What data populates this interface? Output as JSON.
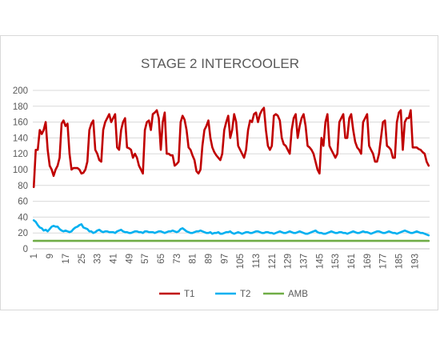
{
  "chart_data": {
    "type": "line",
    "title": "STAGE 2 INTERCOOLER",
    "xlabel": "",
    "ylabel": "",
    "ylim": [
      0,
      200
    ],
    "yticks": [
      0,
      20,
      40,
      60,
      80,
      100,
      120,
      140,
      160,
      180,
      200
    ],
    "grid": true,
    "legend_position": "bottom",
    "x": [
      1,
      2,
      3,
      4,
      5,
      6,
      7,
      8,
      9,
      10,
      11,
      12,
      13,
      14,
      15,
      16,
      17,
      18,
      19,
      20,
      21,
      22,
      23,
      24,
      25,
      26,
      27,
      28,
      29,
      30,
      31,
      32,
      33,
      34,
      35,
      36,
      37,
      38,
      39,
      40,
      41,
      42,
      43,
      44,
      45,
      46,
      47,
      48,
      49,
      50,
      51,
      52,
      53,
      54,
      55,
      56,
      57,
      58,
      59,
      60,
      61,
      62,
      63,
      64,
      65,
      66,
      67,
      68,
      69,
      70,
      71,
      72,
      73,
      74,
      75,
      76,
      77,
      78,
      79,
      80,
      81,
      82,
      83,
      84,
      85,
      86,
      87,
      88,
      89,
      90,
      91,
      92,
      93,
      94,
      95,
      96,
      97,
      98,
      99,
      100,
      101,
      102,
      103,
      104,
      105,
      106,
      107,
      108,
      109,
      110,
      111,
      112,
      113,
      114,
      115,
      116,
      117,
      118,
      119,
      120,
      121,
      122,
      123,
      124,
      125,
      126,
      127,
      128,
      129,
      130,
      131,
      132,
      133,
      134,
      135,
      136,
      137,
      138,
      139,
      140,
      141,
      142,
      143,
      144,
      145,
      146,
      147,
      148,
      149,
      150,
      151,
      152,
      153,
      154,
      155,
      156,
      157,
      158,
      159,
      160,
      161,
      162,
      163,
      164,
      165,
      166,
      167,
      168,
      169,
      170,
      171,
      172,
      173,
      174,
      175,
      176,
      177,
      178,
      179,
      180,
      181,
      182,
      183,
      184,
      185,
      186,
      187,
      188,
      189,
      190,
      191,
      192,
      193,
      194,
      195,
      196,
      197,
      198,
      199,
      200
    ],
    "xtick_labels": [
      "1",
      "9",
      "17",
      "25",
      "33",
      "41",
      "49",
      "57",
      "65",
      "73",
      "81",
      "89",
      "97",
      "105",
      "113",
      "121",
      "129",
      "137",
      "145",
      "153",
      "161",
      "169",
      "177",
      "185",
      "193"
    ],
    "series": [
      {
        "name": "T1",
        "color": "#c00000",
        "values": [
          78,
          125,
          125,
          150,
          145,
          150,
          160,
          125,
          105,
          100,
          92,
          100,
          105,
          115,
          158,
          162,
          155,
          158,
          120,
          100,
          102,
          102,
          102,
          100,
          95,
          96,
          100,
          110,
          150,
          158,
          162,
          125,
          120,
          112,
          110,
          150,
          160,
          165,
          170,
          160,
          165,
          170,
          128,
          125,
          150,
          160,
          165,
          128,
          127,
          125,
          115,
          120,
          115,
          105,
          100,
          95,
          150,
          160,
          162,
          150,
          170,
          172,
          175,
          165,
          125,
          160,
          172,
          120,
          120,
          118,
          118,
          105,
          107,
          110,
          160,
          168,
          163,
          150,
          128,
          125,
          118,
          112,
          98,
          95,
          100,
          130,
          150,
          155,
          162,
          140,
          128,
          122,
          118,
          115,
          112,
          120,
          150,
          160,
          168,
          140,
          150,
          170,
          160,
          130,
          125,
          120,
          115,
          125,
          150,
          162,
          160,
          170,
          172,
          160,
          170,
          175,
          178,
          150,
          130,
          125,
          130,
          168,
          170,
          168,
          162,
          140,
          132,
          130,
          125,
          120,
          150,
          165,
          170,
          140,
          155,
          165,
          170,
          155,
          130,
          128,
          125,
          120,
          110,
          100,
          95,
          140,
          130,
          160,
          170,
          130,
          125,
          120,
          115,
          120,
          160,
          165,
          170,
          140,
          140,
          165,
          170,
          150,
          135,
          128,
          125,
          120,
          160,
          165,
          170,
          130,
          125,
          120,
          110,
          110,
          120,
          140,
          160,
          162,
          130,
          128,
          125,
          115,
          115,
          160,
          172,
          175,
          125,
          160,
          165,
          165,
          175,
          128,
          128,
          128,
          126,
          125,
          122,
          120,
          110,
          105
        ],
        "values_note_omit": true
      },
      {
        "name": "T2",
        "color": "#00b0f0",
        "values": [
          36,
          34,
          30,
          27,
          26,
          23,
          24,
          22,
          25,
          28,
          29,
          28,
          28,
          25,
          23,
          22,
          23,
          22,
          21,
          22,
          25,
          27,
          28,
          30,
          31,
          27,
          26,
          25,
          22,
          22,
          20,
          21,
          23,
          24,
          22,
          21,
          22,
          22,
          21,
          21,
          21,
          20,
          22,
          23,
          24,
          22,
          21,
          21,
          20,
          20,
          21,
          22,
          22,
          21,
          21,
          20,
          22,
          22,
          21,
          21,
          21,
          20,
          21,
          22,
          22,
          21,
          20,
          21,
          22,
          22,
          23,
          22,
          21,
          22,
          25,
          26,
          24,
          22,
          21,
          20,
          20,
          21,
          22,
          22,
          23,
          22,
          21,
          20,
          20,
          21,
          19,
          20,
          20,
          21,
          19,
          19,
          20,
          21,
          21,
          22,
          20,
          19,
          20,
          21,
          20,
          19,
          20,
          21,
          21,
          20,
          20,
          21,
          22,
          22,
          21,
          20,
          20,
          21,
          21,
          20,
          20,
          19,
          20,
          21,
          22,
          21,
          20,
          20,
          21,
          22,
          21,
          20,
          20,
          21,
          22,
          21,
          20,
          19,
          19,
          20,
          21,
          22,
          23,
          21,
          20,
          20,
          19,
          19,
          20,
          21,
          22,
          21,
          20,
          20,
          21,
          21,
          20,
          20,
          19,
          20,
          21,
          22,
          21,
          20,
          20,
          21,
          22,
          21,
          21,
          20,
          19,
          20,
          21,
          22,
          22,
          21,
          20,
          20,
          21,
          22,
          21,
          20,
          20,
          19,
          20,
          21,
          22,
          23,
          22,
          21,
          20,
          20,
          21,
          22,
          21,
          20,
          20,
          19,
          18,
          17
        ]
      },
      {
        "name": "AMB",
        "color": "#70ad47",
        "values": [
          10,
          10,
          10,
          10,
          10,
          10,
          10,
          10,
          10,
          10,
          10,
          10,
          10,
          10,
          10,
          10,
          10,
          10,
          10,
          10,
          10,
          10,
          10,
          10,
          10,
          10,
          10,
          10,
          10,
          10,
          10,
          10,
          10,
          10,
          10,
          10,
          10,
          10,
          10,
          10,
          10,
          10,
          10,
          10,
          10,
          10,
          10,
          10,
          10,
          10,
          10,
          10,
          10,
          10,
          10,
          10,
          10,
          10,
          10,
          10,
          10,
          10,
          10,
          10,
          10,
          10,
          10,
          10,
          10,
          10,
          10,
          10,
          10,
          10,
          10,
          10,
          10,
          10,
          10,
          10,
          10,
          10,
          10,
          10,
          10,
          10,
          10,
          10,
          10,
          10,
          10,
          10,
          10,
          10,
          10,
          10,
          10,
          10,
          10,
          10,
          10,
          10,
          10,
          10,
          10,
          10,
          10,
          10,
          10,
          10,
          10,
          10,
          10,
          10,
          10,
          10,
          10,
          10,
          10,
          10,
          10,
          10,
          10,
          10,
          10,
          10,
          10,
          10,
          10,
          10,
          10,
          10,
          10,
          10,
          10,
          10,
          10,
          10,
          10,
          10,
          10,
          10,
          10,
          10,
          10,
          10,
          10,
          10,
          10,
          10,
          10,
          10,
          10,
          10,
          10,
          10,
          10,
          10,
          10,
          10,
          10,
          10,
          10,
          10,
          10,
          10,
          10,
          10,
          10,
          10,
          10,
          10,
          10,
          10,
          10,
          10,
          10,
          10,
          10,
          10,
          10,
          10,
          10,
          10,
          10,
          10,
          10,
          10,
          10,
          10,
          10,
          10,
          10,
          10,
          10,
          10,
          10,
          10,
          10,
          10
        ]
      }
    ]
  }
}
